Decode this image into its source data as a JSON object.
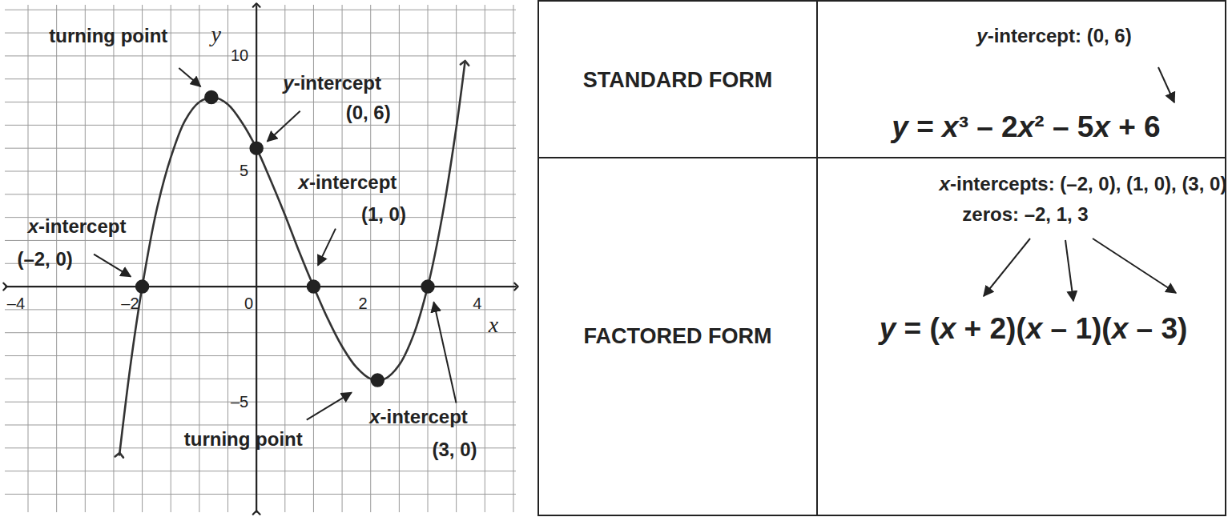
{
  "chart_data": {
    "type": "line",
    "x_label": "x",
    "y_label": "y",
    "x": [
      -2.4,
      -2.2,
      -2,
      -1.75,
      -1.5,
      -1.25,
      -1,
      -0.75,
      -0.5,
      -0.25,
      0,
      0.25,
      0.5,
      0.75,
      1,
      1.25,
      1.5,
      1.75,
      2,
      2.25,
      2.5,
      2.75,
      3,
      3.25,
      3.5,
      3.65
    ],
    "values": [
      -7.3,
      -3.3,
      0,
      3.3,
      5.6,
      7.2,
      8,
      8.2,
      7.9,
      7.1,
      6,
      4.6,
      3.1,
      1.5,
      0,
      -1.4,
      -2.6,
      -3.5,
      -4,
      -4,
      -3.4,
      -2.1,
      0,
      3,
      6.9,
      9.7
    ],
    "color": "#333333",
    "xlim": [
      -4.4,
      4.55
    ],
    "ylim": [
      -9.8,
      12.2
    ],
    "xticks": [
      {
        "value": -4,
        "label": "–4"
      },
      {
        "value": -2,
        "label": "–2"
      },
      0,
      2,
      4
    ],
    "yticks": [
      {
        "value": -5,
        "label": "–5"
      },
      5,
      10
    ],
    "grid": true,
    "annotations": [
      {
        "text": "turning point",
        "x": -0.79,
        "y": 8.21
      },
      {
        "text": "y-intercept",
        "coords": "(0, 6)",
        "x": 0,
        "y": 6
      },
      {
        "text": "x-intercept",
        "coords": "(1, 0)",
        "x": 1,
        "y": 0
      },
      {
        "text": "x-intercept",
        "coords": "(–2, 0)",
        "x": -2,
        "y": 0
      },
      {
        "text": "turning point",
        "x": 2.12,
        "y": -4.06
      },
      {
        "text": "x-intercept",
        "coords": "(3, 0)",
        "x": 3,
        "y": 0
      }
    ]
  },
  "table": {
    "rows": [
      {
        "header": "STANDARD FORM",
        "notes": [
          "y-intercept: (0, 6)"
        ],
        "equation": "y = x³ – 2x² – 5x + 6"
      },
      {
        "header": "FACTORED FORM",
        "notes": [
          "x-intercepts: (–2, 0), (1, 0), (3, 0)",
          "zeros: –2, 1, 3"
        ],
        "equation": "y = (x + 2)(x – 1)(x – 3)"
      }
    ]
  }
}
